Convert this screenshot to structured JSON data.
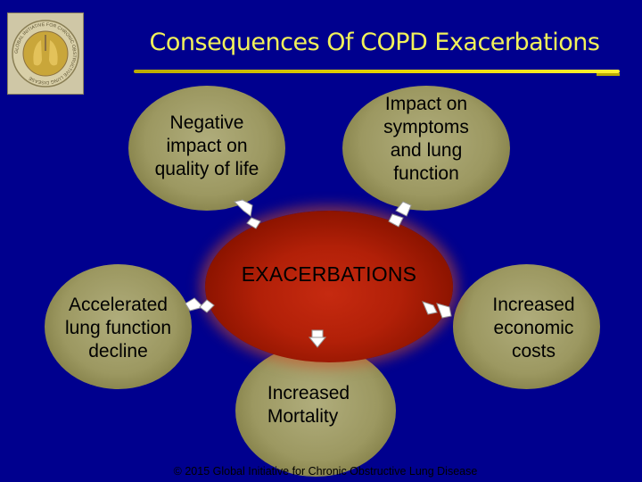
{
  "slide": {
    "title": "Consequences Of COPD Exacerbations",
    "center_label": "EXACERBATIONS",
    "credit": "© 2015 Global Initiative for Chronic Obstructive Lung Disease"
  },
  "logo": {
    "ring_text": "GLOBAL INITIATIVE FOR CHRONIC OBSTRUCTIVE LUNG DISEASE"
  },
  "bubbles": {
    "quality_of_life": "Negative\nimpact on\nquality of life",
    "symptoms": "Impact on\nsymptoms\nand lung\nfunction",
    "lung_decline": "Accelerated\nlung function\ndecline",
    "economic": "Increased\neconomic\ncosts",
    "mortality": "Increased\nMortality"
  },
  "colors": {
    "background": "#00008e",
    "title": "#f2f25a",
    "bubble": "#9c9861",
    "center": "#b22008",
    "arrow": "#ffffff"
  }
}
